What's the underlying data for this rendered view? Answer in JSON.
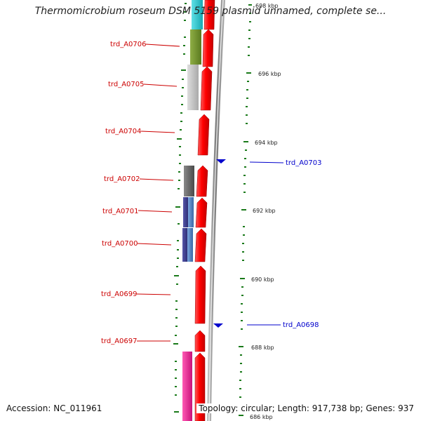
{
  "title": "Thermomicrobium roseum DSM 5159 plasmid unnamed, complete se...",
  "accession": "Accession: NC_011961",
  "summary": "Topology: circular; Length: 917,738 bp; Genes: 937",
  "colors": {
    "forward_gene": "#ee0000",
    "backbone": "#808080",
    "tick": "#1a7a1a",
    "label_red": "#cc0000",
    "label_blue": "#0000cc",
    "marker": "#0000cc",
    "cog_cyan": "#22c4cc",
    "cog_olive": "#6f8f2a",
    "cog_lightgray": "#c4c4c4",
    "cog_darkgray": "#666666",
    "cog_navy": "#3a3a88",
    "cog_steelblue": "#4a78b8",
    "cog_magenta": "#e81c8a"
  },
  "scale_ticks": [
    {
      "label": "698 kbp"
    },
    {
      "label": "696 kbp"
    },
    {
      "label": "694 kbp"
    },
    {
      "label": "692 kbp"
    },
    {
      "label": "690 kbp"
    },
    {
      "label": "688 kbp"
    },
    {
      "label": "686 kbp"
    }
  ],
  "gene_labels_left": [
    {
      "name": "trd_A0706"
    },
    {
      "name": "trd_A0705"
    },
    {
      "name": "trd_A0704"
    },
    {
      "name": "trd_A0702"
    },
    {
      "name": "trd_A0701"
    },
    {
      "name": "trd_A0700"
    },
    {
      "name": "trd_A0699"
    },
    {
      "name": "trd_A0697"
    }
  ],
  "gene_labels_right": [
    {
      "name": "trd_A0703"
    },
    {
      "name": "trd_A0698"
    }
  ]
}
